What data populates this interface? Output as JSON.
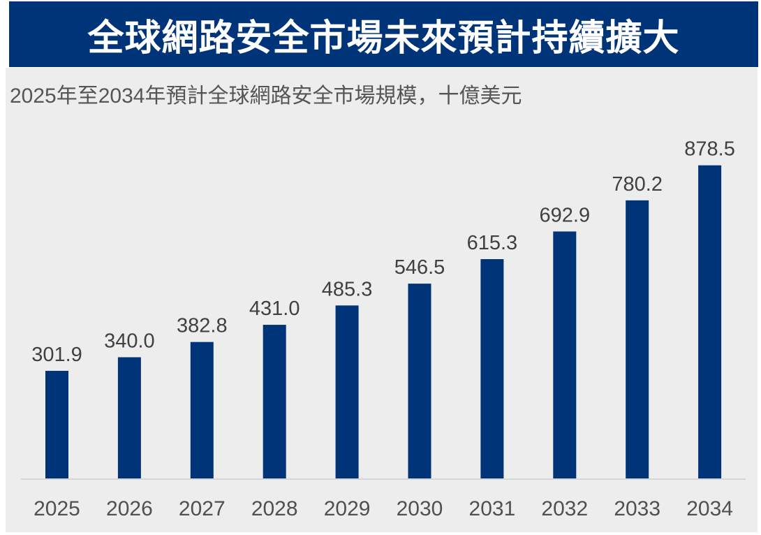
{
  "banner": {
    "title": "全球網路安全市場未來預計持續擴大"
  },
  "colors": {
    "bar": "#003478",
    "banner": "#003478",
    "panel": "#ededed",
    "axis": "#d6d6d6"
  },
  "chart_data": {
    "type": "bar",
    "title": "全球網路安全市場未來預計持續擴大",
    "subtitle": "2025年至2034年預計全球網路安全市場規模，十億美元",
    "xlabel": "",
    "ylabel": "",
    "categories": [
      "2025",
      "2026",
      "2027",
      "2028",
      "2029",
      "2030",
      "2031",
      "2032",
      "2033",
      "2034"
    ],
    "values": [
      301.9,
      340.0,
      382.8,
      431.0,
      485.3,
      546.5,
      615.3,
      692.9,
      780.2,
      878.5
    ],
    "value_labels": [
      "301.9",
      "340.0",
      "382.8",
      "431.0",
      "485.3",
      "546.5",
      "615.3",
      "692.9",
      "780.2",
      "878.5"
    ],
    "ylim": [
      0,
      900
    ],
    "grid": false,
    "legend": "none"
  }
}
